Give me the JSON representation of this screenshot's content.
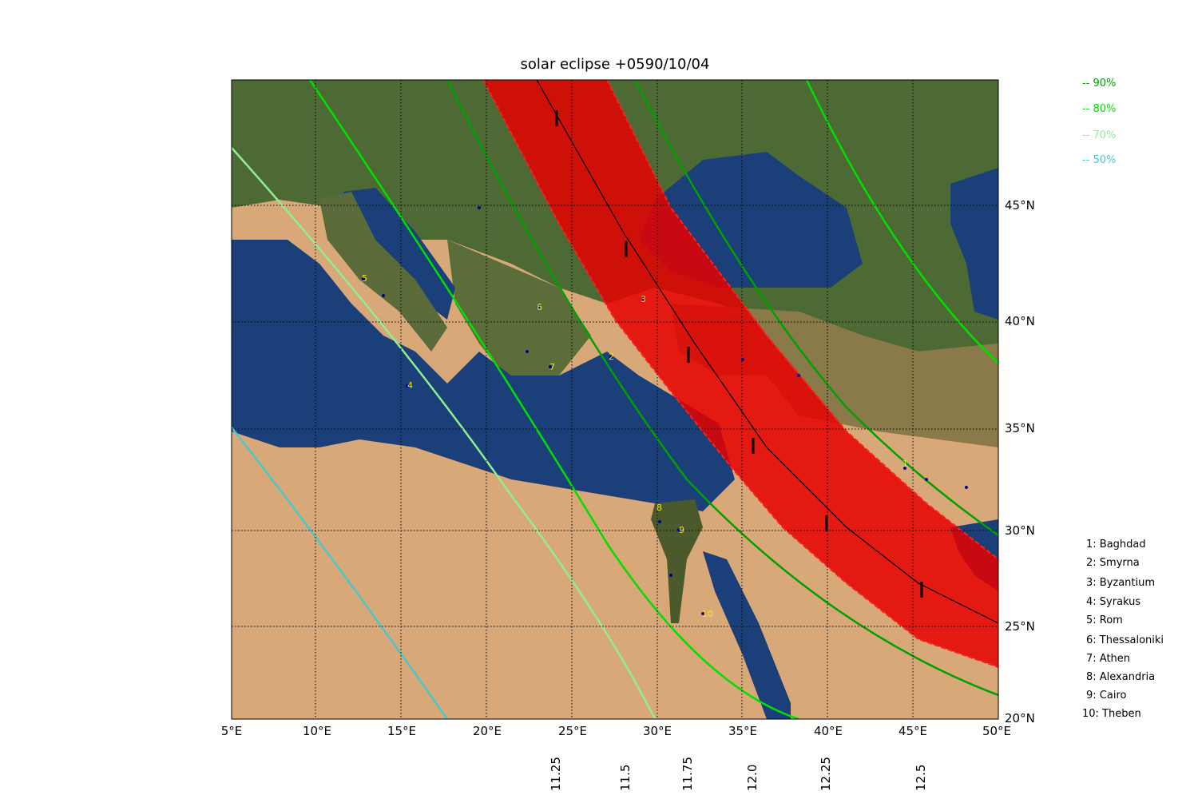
{
  "title": "solar eclipse +0590/10/04",
  "axes": {
    "lon_ticks": [
      "5°E",
      "10°E",
      "15°E",
      "20°E",
      "25°E",
      "30°E",
      "35°E",
      "40°E",
      "45°E",
      "50°E"
    ],
    "lat_ticks": [
      "20°N",
      "25°N",
      "30°N",
      "35°N",
      "40°N",
      "45°N"
    ],
    "time_ticks": [
      "11.25",
      "11.5",
      "11.75",
      "12.0",
      "12.25",
      "12.5"
    ]
  },
  "colors": {
    "path_fill": "#e60000",
    "c90": "#00a000",
    "c80": "#00e000",
    "c70": "#90ee90",
    "c50": "#48c8c8",
    "city_dot": "#00008b",
    "city_label": "#f5e600"
  },
  "legend": [
    {
      "label": "-- 90%",
      "color": "#00a000"
    },
    {
      "label": "-- 80%",
      "color": "#00e000"
    },
    {
      "label": "-- 70%",
      "color": "#90ee90"
    },
    {
      "label": "-- 50%",
      "color": "#48c8c8"
    }
  ],
  "cities": [
    {
      "label": "1: Baghdad",
      "num": "1"
    },
    {
      "label": "2: Smyrna",
      "num": "2"
    },
    {
      "label": "3: Byzantium",
      "num": "3"
    },
    {
      "label": "4: Syrakus",
      "num": "4"
    },
    {
      "label": "5: Rom",
      "num": "5"
    },
    {
      "label": "6: Thessaloniki",
      "num": "6"
    },
    {
      "label": "7: Athen",
      "num": "7"
    },
    {
      "label": "8: Alexandria",
      "num": "8"
    },
    {
      "label": "9: Cairo",
      "num": "9"
    },
    {
      "label": "10: Theben",
      "num": "10"
    }
  ]
}
